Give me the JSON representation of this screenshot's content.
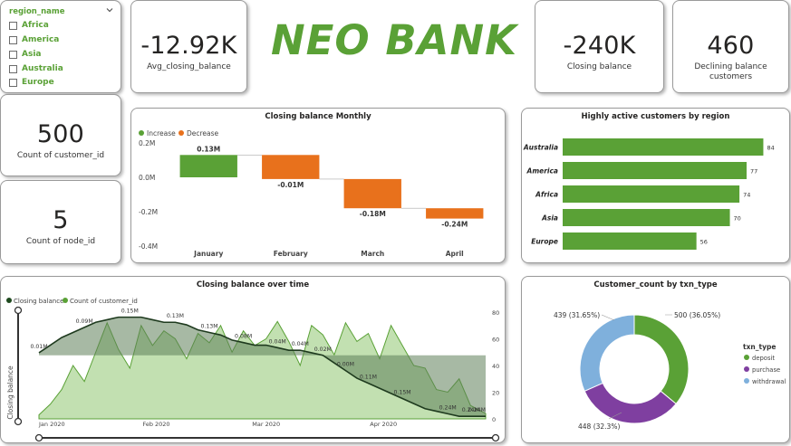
{
  "brand": {
    "title": "NEO BANK"
  },
  "slicer": {
    "title": "region_name",
    "items": [
      "Africa",
      "America",
      "Asia",
      "Australia",
      "Europe"
    ]
  },
  "kpis": {
    "avg_closing_balance": {
      "value": "-12.92K",
      "label": "Avg_closing_balance"
    },
    "closing_balance": {
      "value": "-240K",
      "label": "Closing balance"
    },
    "declining": {
      "value": "460",
      "label": "Declining balance customers"
    },
    "customer_count": {
      "value": "500",
      "label": "Count of customer_id"
    },
    "node_count": {
      "value": "5",
      "label": "Count of node_id"
    }
  },
  "colors": {
    "green": "#5aa136",
    "orange": "#e8711c",
    "purple": "#7f3fa0",
    "blue": "#7fb0dc",
    "dark_green": "#1e4a1e"
  },
  "charts": [
    {
      "type": "bar",
      "variant": "waterfall",
      "title": "Closing balance Monthly",
      "legend": [
        "Increase",
        "Decrease"
      ],
      "legend_position": "top-left",
      "categories": [
        "January",
        "February",
        "March",
        "April"
      ],
      "values": [
        0.13,
        -0.01,
        -0.18,
        -0.24
      ],
      "data_labels": [
        "0.13M",
        "-0.01M",
        "-0.18M",
        "-0.24M"
      ],
      "y_ticks": [
        "0.2M",
        "0.0M",
        "-0.2M",
        "-0.4M"
      ],
      "ylim": [
        -0.4,
        0.2
      ]
    },
    {
      "type": "bar",
      "orientation": "horizontal",
      "title": "Highly active customers by region",
      "categories": [
        "Australia",
        "America",
        "Africa",
        "Asia",
        "Europe"
      ],
      "values": [
        84,
        77,
        74,
        70,
        56
      ],
      "xlim": [
        0,
        88
      ]
    },
    {
      "type": "area",
      "title": "Closing balance over time",
      "legend": [
        "Closing balance",
        "Count of customer_id"
      ],
      "legend_position": "top-left",
      "ylabel": "Closing balance",
      "x_ticks": [
        "Jan 2020",
        "Feb 2020",
        "Mar 2020",
        "Apr 2020"
      ],
      "y2_ticks": [
        "80",
        "60",
        "40",
        "20",
        "0"
      ],
      "y2lim": [
        0,
        80
      ],
      "annotations": [
        "0.01M",
        "0.09M",
        "0.15M",
        "0.13M",
        "0.13M",
        "0.08M",
        "0.04M",
        "0.04M",
        "0.02M",
        "0.00M",
        "0.11M",
        "0.15M",
        "0.24M",
        "0.24M",
        "0.24M"
      ],
      "x": [
        "2020-01-01",
        "2020-01-04",
        "2020-01-07",
        "2020-01-10",
        "2020-01-13",
        "2020-01-16",
        "2020-01-19",
        "2020-01-22",
        "2020-01-25",
        "2020-01-28",
        "2020-01-31",
        "2020-02-03",
        "2020-02-06",
        "2020-02-09",
        "2020-02-12",
        "2020-02-15",
        "2020-02-18",
        "2020-02-21",
        "2020-02-24",
        "2020-02-27",
        "2020-03-01",
        "2020-03-04",
        "2020-03-07",
        "2020-03-10",
        "2020-03-13",
        "2020-03-16",
        "2020-03-19",
        "2020-03-22",
        "2020-03-25",
        "2020-03-28",
        "2020-03-31",
        "2020-04-03",
        "2020-04-06",
        "2020-04-09",
        "2020-04-12",
        "2020-04-15",
        "2020-04-18",
        "2020-04-21",
        "2020-04-24",
        "2020-04-28"
      ],
      "series": [
        {
          "name": "Closing balance",
          "axis": "y",
          "ylim": [
            -0.25,
            0.17
          ],
          "values": [
            0.01,
            0.04,
            0.07,
            0.09,
            0.11,
            0.13,
            0.14,
            0.15,
            0.15,
            0.15,
            0.14,
            0.13,
            0.13,
            0.12,
            0.1,
            0.09,
            0.08,
            0.06,
            0.05,
            0.04,
            0.04,
            0.03,
            0.02,
            0.02,
            0.01,
            0.0,
            -0.03,
            -0.06,
            -0.09,
            -0.11,
            -0.13,
            -0.15,
            -0.17,
            -0.19,
            -0.21,
            -0.22,
            -0.23,
            -0.24,
            -0.24,
            -0.24
          ]
        },
        {
          "name": "Count of customer_id",
          "axis": "y2",
          "values": [
            3,
            11,
            22,
            40,
            28,
            50,
            72,
            52,
            38,
            70,
            55,
            66,
            60,
            45,
            64,
            57,
            70,
            50,
            66,
            55,
            60,
            73,
            58,
            40,
            70,
            63,
            48,
            72,
            58,
            64,
            45,
            70,
            55,
            40,
            38,
            22,
            20,
            30,
            10,
            4
          ]
        }
      ]
    },
    {
      "type": "pie",
      "variant": "donut",
      "title": "Customer_count by txn_type",
      "legend_title": "txn_type",
      "legend_position": "right",
      "categories": [
        "deposit",
        "purchase",
        "withdrawal"
      ],
      "values": [
        500,
        448,
        439
      ],
      "data_labels": [
        "500 (36.05%)",
        "448 (32.3%)",
        "439 (31.65%)"
      ]
    }
  ]
}
